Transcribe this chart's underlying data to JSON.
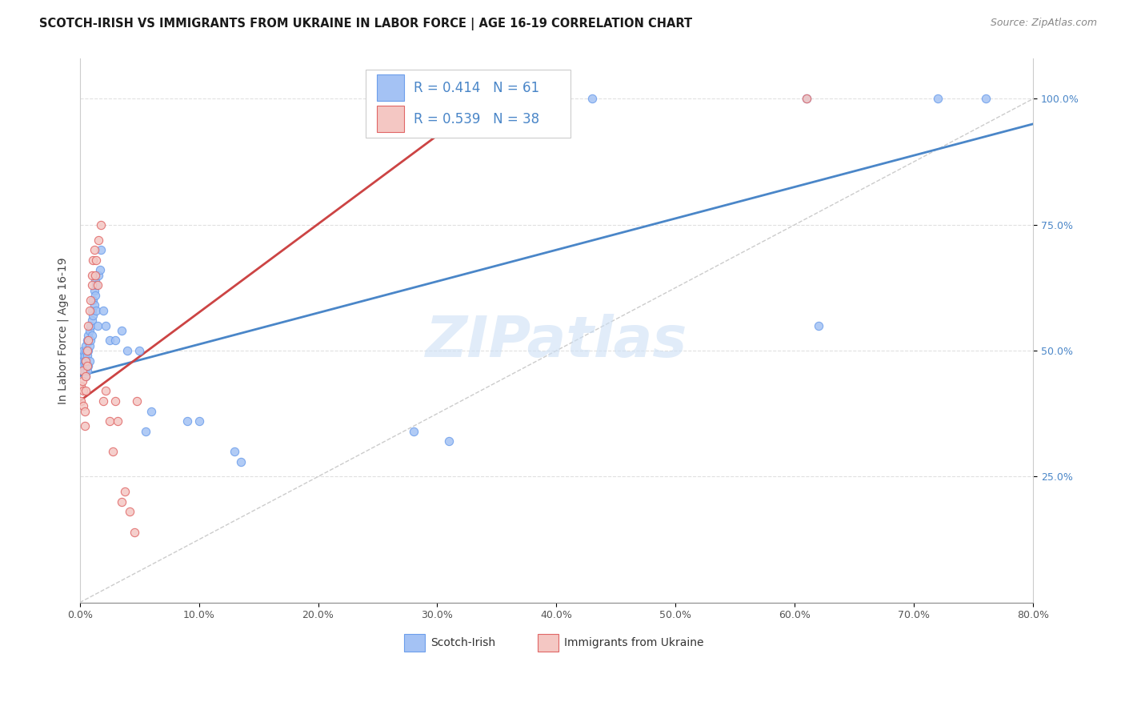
{
  "title": "SCOTCH-IRISH VS IMMIGRANTS FROM UKRAINE IN LABOR FORCE | AGE 16-19 CORRELATION CHART",
  "source": "Source: ZipAtlas.com",
  "ylabel": "In Labor Force | Age 16-19",
  "legend_blue_R": "R = 0.414",
  "legend_blue_N": "N = 61",
  "legend_pink_R": "R = 0.539",
  "legend_pink_N": "N = 38",
  "blue_color": "#a4c2f4",
  "pink_color": "#f4c7c3",
  "blue_edge_color": "#6d9eeb",
  "pink_edge_color": "#e06666",
  "blue_line_color": "#4a86c8",
  "pink_line_color": "#cc4444",
  "diag_line_color": "#cccccc",
  "background_color": "#ffffff",
  "grid_color": "#e0e0e0",
  "watermark": "ZIPatlas",
  "blue_scatter_x": [
    0.001,
    0.002,
    0.002,
    0.003,
    0.003,
    0.003,
    0.004,
    0.004,
    0.004,
    0.005,
    0.005,
    0.005,
    0.005,
    0.006,
    0.006,
    0.006,
    0.007,
    0.007,
    0.007,
    0.008,
    0.008,
    0.008,
    0.009,
    0.009,
    0.01,
    0.01,
    0.01,
    0.011,
    0.011,
    0.012,
    0.012,
    0.013,
    0.013,
    0.014,
    0.014,
    0.015,
    0.016,
    0.017,
    0.018,
    0.02,
    0.022,
    0.025,
    0.03,
    0.035,
    0.04,
    0.05,
    0.055,
    0.06,
    0.09,
    0.1,
    0.13,
    0.135,
    0.28,
    0.31,
    0.38,
    0.4,
    0.43,
    0.61,
    0.62,
    0.72,
    0.76
  ],
  "blue_scatter_y": [
    0.46,
    0.47,
    0.48,
    0.49,
    0.47,
    0.5,
    0.48,
    0.46,
    0.49,
    0.47,
    0.5,
    0.51,
    0.45,
    0.52,
    0.49,
    0.46,
    0.53,
    0.5,
    0.47,
    0.54,
    0.51,
    0.48,
    0.55,
    0.52,
    0.56,
    0.53,
    0.58,
    0.57,
    0.6,
    0.59,
    0.62,
    0.61,
    0.64,
    0.58,
    0.63,
    0.55,
    0.65,
    0.66,
    0.7,
    0.58,
    0.55,
    0.52,
    0.52,
    0.54,
    0.5,
    0.5,
    0.34,
    0.38,
    0.36,
    0.36,
    0.3,
    0.28,
    0.34,
    0.32,
    1.0,
    1.0,
    1.0,
    1.0,
    0.55,
    1.0,
    1.0
  ],
  "pink_scatter_x": [
    0.001,
    0.001,
    0.002,
    0.002,
    0.003,
    0.003,
    0.004,
    0.004,
    0.005,
    0.005,
    0.005,
    0.006,
    0.006,
    0.007,
    0.007,
    0.008,
    0.009,
    0.01,
    0.01,
    0.011,
    0.012,
    0.013,
    0.014,
    0.015,
    0.016,
    0.018,
    0.02,
    0.022,
    0.025,
    0.028,
    0.03,
    0.032,
    0.035,
    0.038,
    0.042,
    0.046,
    0.048,
    0.61
  ],
  "pink_scatter_y": [
    0.43,
    0.4,
    0.44,
    0.46,
    0.42,
    0.39,
    0.38,
    0.35,
    0.45,
    0.42,
    0.48,
    0.5,
    0.47,
    0.55,
    0.52,
    0.58,
    0.6,
    0.63,
    0.65,
    0.68,
    0.7,
    0.65,
    0.68,
    0.63,
    0.72,
    0.75,
    0.4,
    0.42,
    0.36,
    0.3,
    0.4,
    0.36,
    0.2,
    0.22,
    0.18,
    0.14,
    0.4,
    1.0
  ],
  "blue_line_x": [
    0.0,
    0.8
  ],
  "blue_line_y": [
    0.45,
    0.95
  ],
  "pink_line_x": [
    0.0,
    0.37
  ],
  "pink_line_y": [
    0.4,
    1.05
  ],
  "diag_line_x": [
    0.0,
    0.8
  ],
  "diag_line_y": [
    0.0,
    1.0
  ],
  "xmin": 0.0,
  "xmax": 0.8,
  "ymin": 0.0,
  "ymax": 1.08,
  "ytick_vals": [
    0.25,
    0.5,
    0.75,
    1.0
  ],
  "ytick_labels": [
    "25.0%",
    "50.0%",
    "75.0%",
    "100.0%"
  ],
  "xtick_vals": [
    0.0,
    0.1,
    0.2,
    0.3,
    0.4,
    0.5,
    0.6,
    0.7,
    0.8
  ],
  "xtick_labels": [
    "0.0%",
    "10.0%",
    "20.0%",
    "30.0%",
    "40.0%",
    "50.0%",
    "60.0%",
    "70.0%",
    "80.0%"
  ]
}
